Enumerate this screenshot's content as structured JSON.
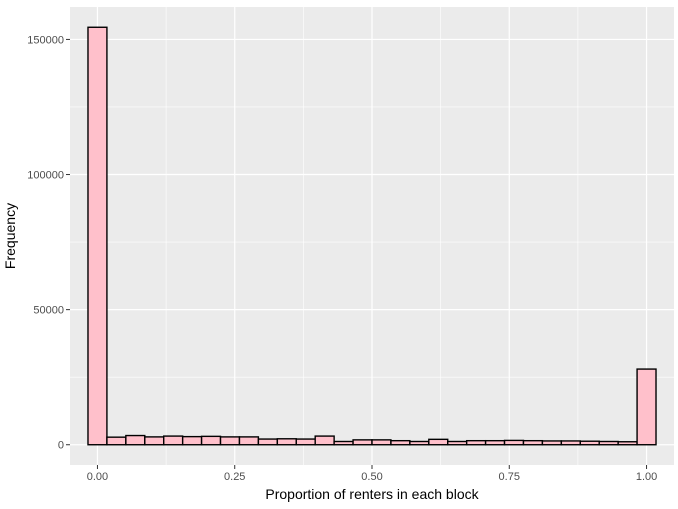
{
  "chart_data": {
    "type": "bar",
    "title": "",
    "xlabel": "Proportion of renters in each block",
    "ylabel": "Frequency",
    "bin_width": 0.0344827586,
    "bin_centers": [
      0,
      0.0344827586,
      0.0689655172,
      0.1034482759,
      0.1379310345,
      0.1724137931,
      0.2068965517,
      0.2413793103,
      0.275862069,
      0.3103448276,
      0.3448275862,
      0.3793103448,
      0.4137931034,
      0.4482758621,
      0.4827586207,
      0.5172413793,
      0.5517241379,
      0.5862068966,
      0.6206896552,
      0.6551724138,
      0.6896551724,
      0.724137931,
      0.7586206897,
      0.7931034483,
      0.8275862069,
      0.8620689655,
      0.8965517241,
      0.9310344828,
      0.9655172414,
      1.0
    ],
    "values": [
      154500,
      2800,
      3400,
      2900,
      3200,
      3000,
      3100,
      2900,
      2900,
      2100,
      2200,
      2100,
      3200,
      1200,
      1800,
      1800,
      1500,
      1200,
      2000,
      1200,
      1500,
      1500,
      1600,
      1500,
      1400,
      1400,
      1300,
      1200,
      1100,
      28000
    ],
    "xlim": [
      -0.05,
      1.05
    ],
    "ylim": [
      -7500,
      162000
    ],
    "x_ticks": [
      0,
      0.25,
      0.5,
      0.75,
      1.0
    ],
    "x_tick_labels": [
      "0.00",
      "0.25",
      "0.50",
      "0.75",
      "1.00"
    ],
    "y_ticks": [
      0,
      50000,
      100000,
      150000
    ],
    "y_tick_labels": [
      "0",
      "50000",
      "100000",
      "150000"
    ],
    "grid": true,
    "bar_fill": "#ffc0cb",
    "bar_stroke": "#000000",
    "panel_background": "#ebebeb",
    "grid_color": "#ffffff"
  }
}
